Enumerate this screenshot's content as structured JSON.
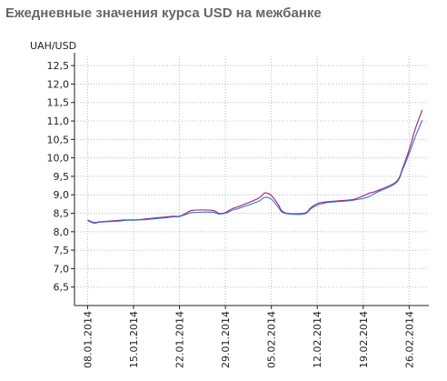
{
  "page": {
    "title": "Ежедневные значения курса USD на межбанке"
  },
  "chart_data": {
    "type": "line",
    "title": "Ежедневные значения курса USD на межбанке",
    "ylabel": "UAH/USD",
    "xlabel": "",
    "ylim": [
      6.0,
      12.75
    ],
    "yticks": [
      "6,5",
      "7,0",
      "7,5",
      "8,0",
      "8,5",
      "9,0",
      "9,5",
      "10,0",
      "10,5",
      "11,0",
      "11,5",
      "12,0",
      "12,5"
    ],
    "ytick_values": [
      6.5,
      7.0,
      7.5,
      8.0,
      8.5,
      9.0,
      9.5,
      10.0,
      10.5,
      11.0,
      11.5,
      12.0,
      12.5
    ],
    "xlim": [
      "2014-01-06",
      "2014-03-01"
    ],
    "xticks": [
      "08.01.2014",
      "15.01.2014",
      "22.01.2014",
      "29.01.2014",
      "05.02.2014",
      "12.02.2014",
      "19.02.2014",
      "26.02.2014"
    ],
    "xtick_dates": [
      "2014-01-08",
      "2014-01-15",
      "2014-01-22",
      "2014-01-29",
      "2014-02-05",
      "2014-02-12",
      "2014-02-19",
      "2014-02-26"
    ],
    "grid": true,
    "legend": "none",
    "series": [
      {
        "color": "#a0206e",
        "x": [
          "2014-01-08",
          "2014-01-09",
          "2014-01-10",
          "2014-01-13",
          "2014-01-14",
          "2014-01-15",
          "2014-01-16",
          "2014-01-17",
          "2014-01-20",
          "2014-01-21",
          "2014-01-22",
          "2014-01-23",
          "2014-01-24",
          "2014-01-27",
          "2014-01-28",
          "2014-01-29",
          "2014-01-30",
          "2014-01-31",
          "2014-02-03",
          "2014-02-04",
          "2014-02-05",
          "2014-02-06",
          "2014-02-07",
          "2014-02-10",
          "2014-02-11",
          "2014-02-12",
          "2014-02-13",
          "2014-02-14",
          "2014-02-17",
          "2014-02-18",
          "2014-02-19",
          "2014-02-20",
          "2014-02-21",
          "2014-02-24",
          "2014-02-25",
          "2014-02-26",
          "2014-02-27",
          "2014-02-28"
        ],
        "values": [
          8.32,
          8.25,
          8.27,
          8.31,
          8.32,
          8.32,
          8.33,
          8.35,
          8.4,
          8.42,
          8.42,
          8.5,
          8.58,
          8.58,
          8.5,
          8.52,
          8.62,
          8.68,
          8.9,
          9.05,
          8.98,
          8.75,
          8.52,
          8.5,
          8.65,
          8.76,
          8.8,
          8.82,
          8.86,
          8.9,
          8.97,
          9.05,
          9.1,
          9.35,
          9.72,
          10.22,
          10.82,
          11.3
        ]
      },
      {
        "color": "#3a6fd8",
        "x": [
          "2014-01-08",
          "2014-01-09",
          "2014-01-10",
          "2014-01-13",
          "2014-01-14",
          "2014-01-15",
          "2014-01-16",
          "2014-01-17",
          "2014-01-20",
          "2014-01-21",
          "2014-01-22",
          "2014-01-23",
          "2014-01-24",
          "2014-01-27",
          "2014-01-28",
          "2014-01-29",
          "2014-01-30",
          "2014-01-31",
          "2014-02-03",
          "2014-02-04",
          "2014-02-05",
          "2014-02-06",
          "2014-02-07",
          "2014-02-10",
          "2014-02-11",
          "2014-02-12",
          "2014-02-13",
          "2014-02-14",
          "2014-02-17",
          "2014-02-18",
          "2014-02-19",
          "2014-02-20",
          "2014-02-21",
          "2014-02-24",
          "2014-02-25",
          "2014-02-26",
          "2014-02-27",
          "2014-02-28"
        ],
        "values": [
          8.3,
          8.23,
          8.26,
          8.29,
          8.31,
          8.31,
          8.32,
          8.33,
          8.38,
          8.4,
          8.41,
          8.47,
          8.52,
          8.53,
          8.48,
          8.5,
          8.58,
          8.63,
          8.82,
          8.93,
          8.88,
          8.68,
          8.5,
          8.48,
          8.62,
          8.72,
          8.77,
          8.8,
          8.84,
          8.87,
          8.9,
          8.96,
          9.06,
          9.32,
          9.68,
          10.12,
          10.6,
          11.02
        ]
      }
    ]
  }
}
